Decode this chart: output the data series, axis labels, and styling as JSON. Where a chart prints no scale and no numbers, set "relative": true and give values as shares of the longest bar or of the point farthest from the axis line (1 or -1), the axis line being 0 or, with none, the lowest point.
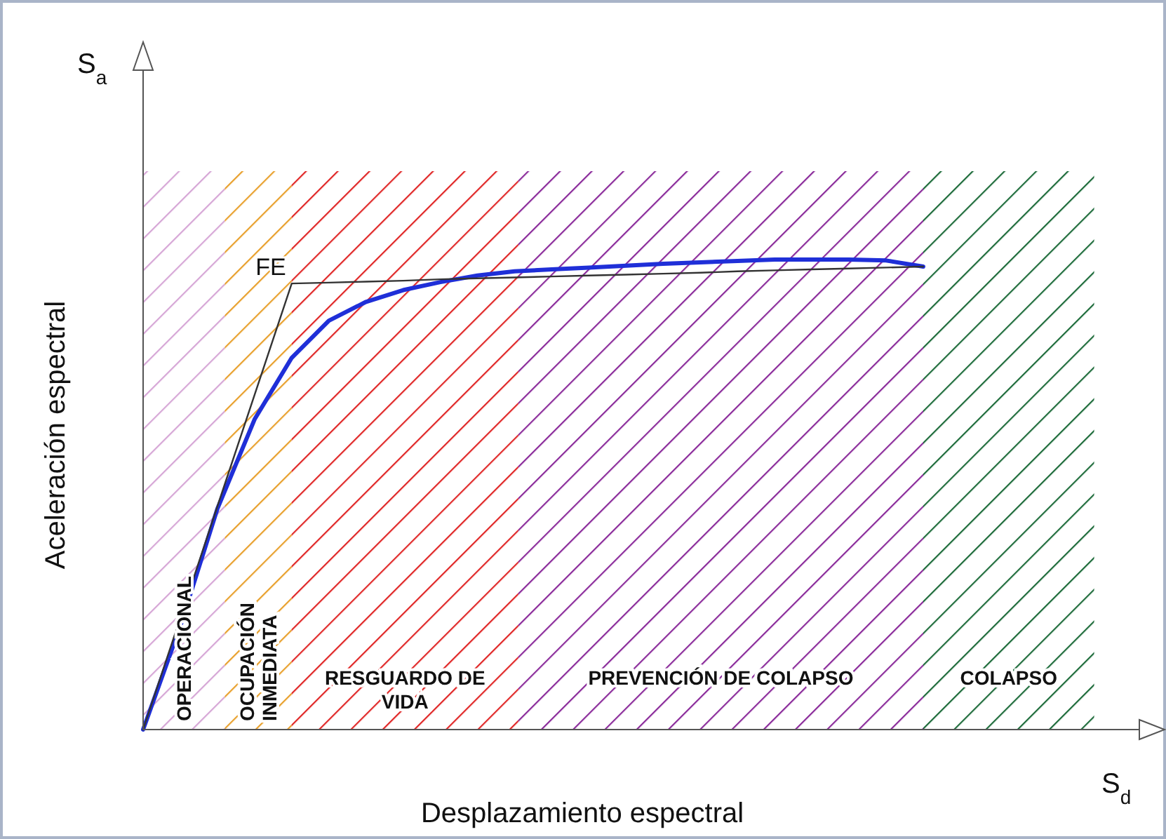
{
  "chart_data": {
    "type": "line",
    "relative": true,
    "xlabel": "Desplazamiento espectral",
    "ylabel": "Aceleración espectral",
    "categories": [
      null,
      null,
      null,
      null,
      null,
      null,
      null,
      null,
      null,
      null,
      null,
      null,
      null,
      null,
      null,
      null,
      null,
      null,
      null,
      null,
      null,
      null
    ],
    "series": [
      {
        "color": "#1f2fd8",
        "values": [
          0,
          0.22,
          0.47,
          0.66,
          0.791,
          0.87,
          0.91,
          0.935,
          0.952,
          0.966,
          0.975,
          0.979,
          0.983,
          0.987,
          0.991,
          0.994,
          0.997,
          1,
          1,
          1,
          0.998,
          0.985
        ]
      },
      {
        "color": "#333333",
        "values": [
          0,
          0.237,
          0.475,
          0.712,
          0.949,
          0.951,
          0.953,
          0.955,
          0.958,
          0.96,
          0.962,
          0.964,
          0.966,
          0.968,
          0.97,
          0.972,
          0.975,
          0.977,
          0.979,
          0.981,
          0.983,
          0.985
        ]
      }
    ],
    "annotations": [
      "S$_{a}$",
      "S$_{d}$",
      "FE",
      "OPERACIONAL",
      "OCUPACIÓN INMEDIATA",
      "RESGUARDO DE VIDA",
      "PREVENCIÓN DE COLAPSO",
      "COLAPSO"
    ],
    "line_style": "solid",
    "marker": "none"
  }
}
